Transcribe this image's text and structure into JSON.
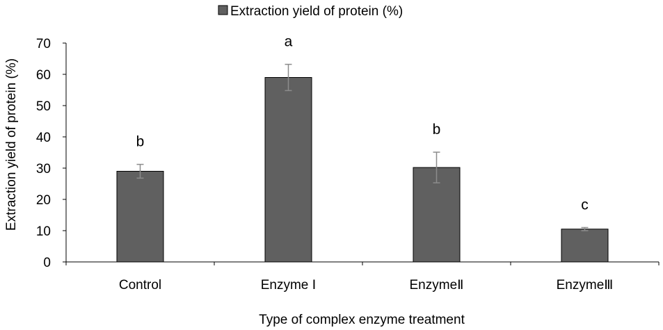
{
  "chart_data": {
    "type": "bar",
    "legend": {
      "label": "Extraction yield of protein (%)",
      "position": "top-center"
    },
    "xlabel": "Type of complex enzyme treatment",
    "ylabel": "Extraction yield of protein (%)",
    "ylim": [
      0,
      70
    ],
    "yticks": [
      0,
      10,
      20,
      30,
      40,
      50,
      60,
      70
    ],
    "grid": false,
    "categories": [
      "Control",
      "Enzyme Ⅰ",
      "EnzymeⅡ",
      "EnzymeⅢ"
    ],
    "series": [
      {
        "name": "Extraction yield of protein (%)",
        "values": [
          29,
          59,
          30.2,
          10.5
        ],
        "errors": [
          2.2,
          4.2,
          4.9,
          0.5
        ],
        "letters": [
          "b",
          "a",
          "b",
          "c"
        ]
      }
    ],
    "colors": {
      "bar": "#606060",
      "bar_edge": "#000000",
      "error_bar": "#8c8c8c",
      "axis": "#000000"
    }
  }
}
